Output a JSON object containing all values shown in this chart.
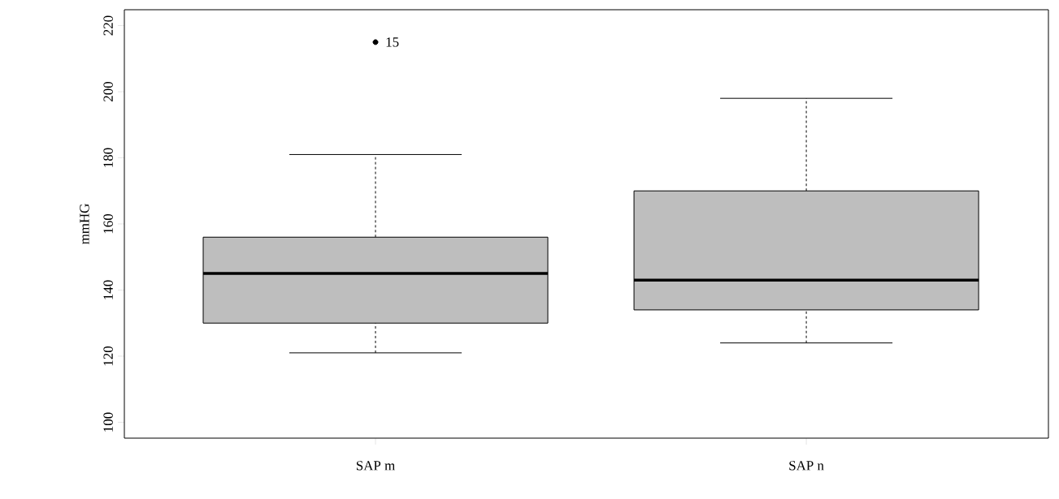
{
  "chart_data": {
    "type": "box",
    "ylabel": "mmHG",
    "categories": [
      "SAP m",
      "SAP n"
    ],
    "series": [
      {
        "color": "#bebebe",
        "boxes": [
          {
            "low": 121,
            "q1": 130,
            "median": 145,
            "q3": 156,
            "high": 181,
            "outliers": [
              215
            ]
          },
          {
            "low": 124,
            "q1": 134,
            "median": 143,
            "q3": 170,
            "high": 198
          }
        ]
      }
    ],
    "ylim": [
      95.2,
      224.8
    ],
    "yticks": [
      100,
      120,
      140,
      160,
      180,
      200,
      220
    ],
    "annotations": [
      "15"
    ]
  }
}
